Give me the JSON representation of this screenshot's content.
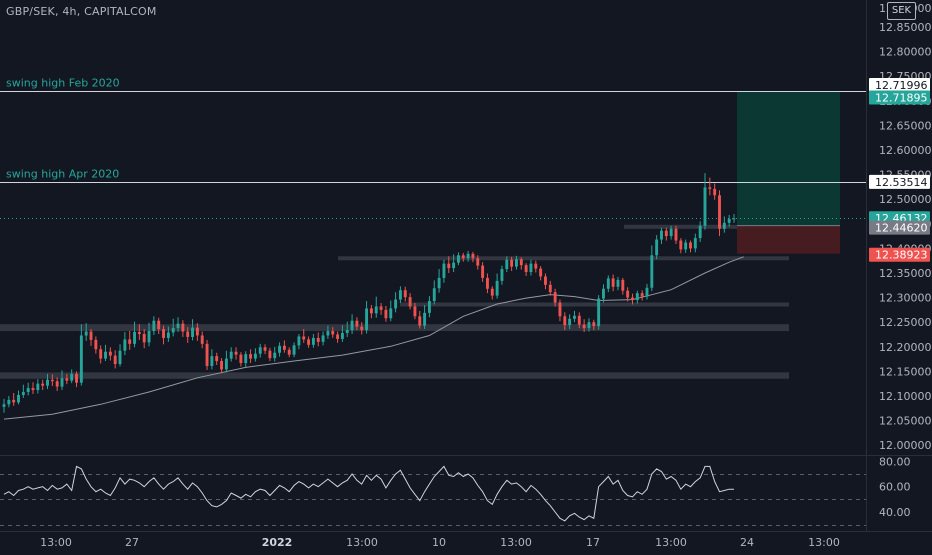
{
  "header": {
    "symbol": "GBP/SEK, 4h, CAPITALCOM",
    "currency": "SEK"
  },
  "colors": {
    "up": "#26a69a",
    "down": "#ef5350",
    "bg": "#131722",
    "text": "#b2b5be",
    "ma": "#9598a1"
  },
  "chart_data": {
    "type": "candlestick",
    "price_axis": {
      "ticks": [
        "12.85000",
        "12.80000",
        "12.75000",
        "12.70000",
        "12.65000",
        "12.60000",
        "12.55000",
        "12.50000",
        "12.45000",
        "12.40000",
        "12.35000",
        "12.30000",
        "12.25000",
        "12.20000",
        "12.15000",
        "12.10000",
        "12.05000",
        "12.00000"
      ],
      "top_tick_partial": "12.90000",
      "range": [
        11.98,
        12.905
      ]
    },
    "time_axis": {
      "labels": [
        "13:00",
        "27",
        "2022",
        "13:00",
        "10",
        "13:00",
        "17",
        "13:00",
        "24",
        "13:00"
      ]
    },
    "annotations": [
      {
        "label": "swing high Feb 2020",
        "price": 12.71996
      },
      {
        "label": "swing high Apr 2020",
        "price": 12.53514
      }
    ],
    "price_labels": [
      {
        "text": "12.71996",
        "style": "white"
      },
      {
        "text": "12.71895",
        "style": "teal"
      },
      {
        "text": "12.53514",
        "style": "white"
      },
      {
        "text": "12.46132",
        "style": "teal"
      },
      {
        "text": "12.44620",
        "style": "gray"
      },
      {
        "text": "12.38923",
        "style": "red"
      }
    ],
    "position": {
      "entry": 12.4462,
      "target": 12.71895,
      "stop": 12.38923
    },
    "last_price": 12.46132,
    "zones": [
      {
        "low": 12.135,
        "high": 12.148
      },
      {
        "low": 12.232,
        "high": 12.246
      },
      {
        "low": 12.284,
        "high": 12.29
      },
      {
        "low": 12.376,
        "high": 12.384
      },
      {
        "low": 12.442,
        "high": 12.448
      }
    ],
    "candles": [
      [
        12.078,
        12.083,
        12.066,
        12.094
      ],
      [
        12.083,
        12.092,
        12.077,
        12.1
      ],
      [
        12.092,
        12.087,
        12.08,
        12.106
      ],
      [
        12.087,
        12.102,
        12.083,
        12.111
      ],
      [
        12.102,
        12.108,
        12.096,
        12.123
      ],
      [
        12.108,
        12.116,
        12.101,
        12.127
      ],
      [
        12.116,
        12.112,
        12.104,
        12.128
      ],
      [
        12.112,
        12.125,
        12.105,
        12.134
      ],
      [
        12.125,
        12.121,
        12.112,
        12.133
      ],
      [
        12.121,
        12.133,
        12.114,
        12.145
      ],
      [
        12.133,
        12.13,
        12.12,
        12.144
      ],
      [
        12.13,
        12.119,
        12.11,
        12.138
      ],
      [
        12.119,
        12.136,
        12.112,
        12.152
      ],
      [
        12.136,
        12.131,
        12.124,
        12.145
      ],
      [
        12.131,
        12.145,
        12.126,
        12.154
      ],
      [
        12.145,
        12.127,
        12.118,
        12.15
      ],
      [
        12.127,
        12.223,
        12.121,
        12.246
      ],
      [
        12.223,
        12.231,
        12.212,
        12.248
      ],
      [
        12.231,
        12.214,
        12.202,
        12.236
      ],
      [
        12.214,
        12.195,
        12.186,
        12.221
      ],
      [
        12.195,
        12.176,
        12.166,
        12.203
      ],
      [
        12.176,
        12.19,
        12.171,
        12.204
      ],
      [
        12.19,
        12.182,
        12.172,
        12.199
      ],
      [
        12.182,
        12.165,
        12.156,
        12.193
      ],
      [
        12.165,
        12.192,
        12.16,
        12.205
      ],
      [
        12.192,
        12.215,
        12.183,
        12.23
      ],
      [
        12.215,
        12.206,
        12.194,
        12.232
      ],
      [
        12.206,
        12.23,
        12.199,
        12.251
      ],
      [
        12.23,
        12.226,
        12.214,
        12.246
      ],
      [
        12.226,
        12.209,
        12.197,
        12.236
      ],
      [
        12.209,
        12.232,
        12.201,
        12.249
      ],
      [
        12.232,
        12.253,
        12.224,
        12.262
      ],
      [
        12.253,
        12.236,
        12.226,
        12.259
      ],
      [
        12.236,
        12.218,
        12.205,
        12.243
      ],
      [
        12.218,
        12.229,
        12.21,
        12.241
      ],
      [
        12.229,
        12.238,
        12.221,
        12.257
      ],
      [
        12.238,
        12.247,
        12.23,
        12.26
      ],
      [
        12.247,
        12.231,
        12.22,
        12.254
      ],
      [
        12.231,
        12.22,
        12.208,
        12.24
      ],
      [
        12.22,
        12.239,
        12.213,
        12.256
      ],
      [
        12.239,
        12.223,
        12.212,
        12.248
      ],
      [
        12.223,
        12.206,
        12.197,
        12.231
      ],
      [
        12.206,
        12.161,
        12.153,
        12.214
      ],
      [
        12.161,
        12.181,
        12.154,
        12.195
      ],
      [
        12.181,
        12.171,
        12.163,
        12.188
      ],
      [
        12.171,
        12.154,
        12.146,
        12.177
      ],
      [
        12.154,
        12.176,
        12.148,
        12.192
      ],
      [
        12.176,
        12.19,
        12.17,
        12.199
      ],
      [
        12.19,
        12.184,
        12.174,
        12.199
      ],
      [
        12.184,
        12.167,
        12.16,
        12.189
      ],
      [
        12.167,
        12.185,
        12.159,
        12.191
      ],
      [
        12.185,
        12.176,
        12.167,
        12.195
      ],
      [
        12.176,
        12.186,
        12.17,
        12.197
      ],
      [
        12.186,
        12.199,
        12.178,
        12.206
      ],
      [
        12.199,
        12.192,
        12.185,
        12.205
      ],
      [
        12.192,
        12.177,
        12.171,
        12.198
      ],
      [
        12.177,
        12.188,
        12.17,
        12.2
      ],
      [
        12.188,
        12.202,
        12.18,
        12.209
      ],
      [
        12.202,
        12.194,
        12.188,
        12.213
      ],
      [
        12.194,
        12.184,
        12.179,
        12.199
      ],
      [
        12.184,
        12.203,
        12.179,
        12.209
      ],
      [
        12.203,
        12.221,
        12.195,
        12.226
      ],
      [
        12.221,
        12.215,
        12.208,
        12.236
      ],
      [
        12.215,
        12.204,
        12.198,
        12.221
      ],
      [
        12.204,
        12.218,
        12.198,
        12.226
      ],
      [
        12.218,
        12.21,
        12.201,
        12.229
      ],
      [
        12.21,
        12.223,
        12.203,
        12.231
      ],
      [
        12.223,
        12.232,
        12.216,
        12.243
      ],
      [
        12.232,
        12.225,
        12.218,
        12.24
      ],
      [
        12.225,
        12.216,
        12.208,
        12.231
      ],
      [
        12.216,
        12.228,
        12.21,
        12.244
      ],
      [
        12.228,
        12.234,
        12.22,
        12.251
      ],
      [
        12.234,
        12.253,
        12.226,
        12.266
      ],
      [
        12.253,
        12.241,
        12.234,
        12.26
      ],
      [
        12.241,
        12.234,
        12.225,
        12.25
      ],
      [
        12.234,
        12.278,
        12.227,
        12.293
      ],
      [
        12.278,
        12.268,
        12.258,
        12.285
      ],
      [
        12.268,
        12.282,
        12.259,
        12.302
      ],
      [
        12.282,
        12.275,
        12.265,
        12.289
      ],
      [
        12.275,
        12.258,
        12.251,
        12.283
      ],
      [
        12.258,
        12.278,
        12.252,
        12.294
      ],
      [
        12.278,
        12.296,
        12.27,
        12.311
      ],
      [
        12.296,
        12.315,
        12.289,
        12.323
      ],
      [
        12.315,
        12.301,
        12.292,
        12.322
      ],
      [
        12.301,
        12.282,
        12.276,
        12.309
      ],
      [
        12.282,
        12.262,
        12.256,
        12.289
      ],
      [
        12.262,
        12.243,
        12.237,
        12.273
      ],
      [
        12.243,
        12.269,
        12.236,
        12.285
      ],
      [
        12.269,
        12.293,
        12.26,
        12.303
      ],
      [
        12.293,
        12.319,
        12.286,
        12.335
      ],
      [
        12.319,
        12.34,
        12.31,
        12.358
      ],
      [
        12.34,
        12.369,
        12.33,
        12.377
      ],
      [
        12.369,
        12.36,
        12.35,
        12.384
      ],
      [
        12.36,
        12.371,
        12.352,
        12.388
      ],
      [
        12.371,
        12.386,
        12.366,
        12.392
      ],
      [
        12.386,
        12.38,
        12.373,
        12.391
      ],
      [
        12.38,
        12.389,
        12.373,
        12.395
      ],
      [
        12.389,
        12.38,
        12.372,
        12.393
      ],
      [
        12.38,
        12.365,
        12.357,
        12.386
      ],
      [
        12.365,
        12.34,
        12.332,
        12.372
      ],
      [
        12.34,
        12.318,
        12.309,
        12.349
      ],
      [
        12.318,
        12.304,
        12.296,
        12.323
      ],
      [
        12.304,
        12.334,
        12.298,
        12.349
      ],
      [
        12.334,
        12.358,
        12.326,
        12.365
      ],
      [
        12.358,
        12.377,
        12.352,
        12.384
      ],
      [
        12.377,
        12.363,
        12.354,
        12.383
      ],
      [
        12.363,
        12.378,
        12.357,
        12.385
      ],
      [
        12.378,
        12.366,
        12.357,
        12.382
      ],
      [
        12.366,
        12.352,
        12.344,
        12.37
      ],
      [
        12.352,
        12.369,
        12.345,
        12.377
      ],
      [
        12.369,
        12.359,
        12.351,
        12.375
      ],
      [
        12.359,
        12.343,
        12.335,
        12.364
      ],
      [
        12.343,
        12.326,
        12.317,
        12.349
      ],
      [
        12.326,
        12.311,
        12.304,
        12.334
      ],
      [
        12.311,
        12.29,
        12.282,
        12.318
      ],
      [
        12.29,
        12.262,
        12.252,
        12.296
      ],
      [
        12.262,
        12.244,
        12.234,
        12.27
      ],
      [
        12.244,
        12.257,
        12.236,
        12.266
      ],
      [
        12.257,
        12.263,
        12.25,
        12.273
      ],
      [
        12.263,
        12.245,
        12.238,
        12.27
      ],
      [
        12.245,
        12.238,
        12.23,
        12.256
      ],
      [
        12.238,
        12.25,
        12.231,
        12.258
      ],
      [
        12.25,
        12.242,
        12.234,
        12.255
      ],
      [
        12.242,
        12.298,
        12.235,
        12.305
      ],
      [
        12.298,
        12.318,
        12.29,
        12.327
      ],
      [
        12.318,
        12.339,
        12.311,
        12.345
      ],
      [
        12.339,
        12.322,
        12.313,
        12.347
      ],
      [
        12.322,
        12.336,
        12.315,
        12.342
      ],
      [
        12.336,
        12.314,
        12.306,
        12.34
      ],
      [
        12.314,
        12.3,
        12.292,
        12.321
      ],
      [
        12.3,
        12.295,
        12.286,
        12.308
      ],
      [
        12.295,
        12.309,
        12.288,
        12.314
      ],
      [
        12.309,
        12.302,
        12.294,
        12.315
      ],
      [
        12.302,
        12.32,
        12.296,
        12.328
      ],
      [
        12.32,
        12.386,
        12.313,
        12.406
      ],
      [
        12.386,
        12.418,
        12.378,
        12.427
      ],
      [
        12.418,
        12.436,
        12.409,
        12.442
      ],
      [
        12.436,
        12.425,
        12.416,
        12.442
      ],
      [
        12.425,
        12.44,
        12.418,
        12.446
      ],
      [
        12.44,
        12.416,
        12.409,
        12.446
      ],
      [
        12.416,
        12.398,
        12.39,
        12.421
      ],
      [
        12.398,
        12.412,
        12.391,
        12.418
      ],
      [
        12.412,
        12.4,
        12.392,
        12.416
      ],
      [
        12.4,
        12.421,
        12.392,
        12.43
      ],
      [
        12.421,
        12.446,
        12.413,
        12.455
      ],
      [
        12.446,
        12.524,
        12.438,
        12.553
      ],
      [
        12.524,
        12.521,
        12.508,
        12.544
      ],
      [
        12.521,
        12.508,
        12.499,
        12.532
      ],
      [
        12.508,
        12.44,
        12.425,
        12.518
      ],
      [
        12.44,
        12.452,
        12.432,
        12.465
      ],
      [
        12.452,
        12.46,
        12.444,
        12.468
      ],
      [
        12.46,
        12.461,
        12.452,
        12.47
      ]
    ],
    "ma": [
      [
        0,
        12.053
      ],
      [
        10,
        12.063
      ],
      [
        20,
        12.083
      ],
      [
        30,
        12.108
      ],
      [
        40,
        12.137
      ],
      [
        50,
        12.158
      ],
      [
        60,
        12.171
      ],
      [
        70,
        12.183
      ],
      [
        80,
        12.201
      ],
      [
        88,
        12.223
      ],
      [
        95,
        12.262
      ],
      [
        102,
        12.287
      ],
      [
        108,
        12.299
      ],
      [
        113,
        12.306
      ],
      [
        118,
        12.302
      ],
      [
        123,
        12.294
      ],
      [
        130,
        12.296
      ],
      [
        138,
        12.316
      ],
      [
        145,
        12.35
      ],
      [
        150,
        12.372
      ],
      [
        153,
        12.383
      ]
    ],
    "rsi": {
      "ticks": [
        "80.00",
        "60.00",
        "40.00"
      ],
      "range": [
        25,
        85
      ],
      "levels": [
        70,
        50,
        30
      ],
      "values": [
        54,
        56,
        53,
        57,
        58,
        60,
        58,
        59,
        60,
        57,
        61,
        58,
        59,
        62,
        57,
        76,
        74,
        66,
        60,
        56,
        58,
        55,
        53,
        59,
        67,
        62,
        66,
        65,
        63,
        60,
        64,
        67,
        62,
        58,
        62,
        64,
        67,
        62,
        58,
        63,
        60,
        55,
        49,
        45,
        44,
        46,
        49,
        55,
        53,
        51,
        54,
        52,
        56,
        58,
        57,
        53,
        57,
        61,
        59,
        56,
        61,
        64,
        62,
        59,
        62,
        60,
        63,
        66,
        63,
        60,
        63,
        65,
        70,
        65,
        62,
        69,
        65,
        69,
        66,
        59,
        65,
        70,
        73,
        66,
        59,
        54,
        49,
        56,
        62,
        68,
        72,
        76,
        69,
        68,
        71,
        68,
        70,
        67,
        61,
        56,
        49,
        46,
        54,
        60,
        65,
        62,
        63,
        60,
        56,
        61,
        58,
        54,
        49,
        45,
        40,
        35,
        33,
        37,
        39,
        36,
        34,
        37,
        35,
        60,
        64,
        68,
        62,
        65,
        57,
        53,
        52,
        56,
        54,
        58,
        70,
        74,
        72,
        66,
        68,
        65,
        58,
        62,
        60,
        64,
        67,
        76,
        76,
        64,
        56,
        57,
        58,
        58
      ]
    }
  }
}
